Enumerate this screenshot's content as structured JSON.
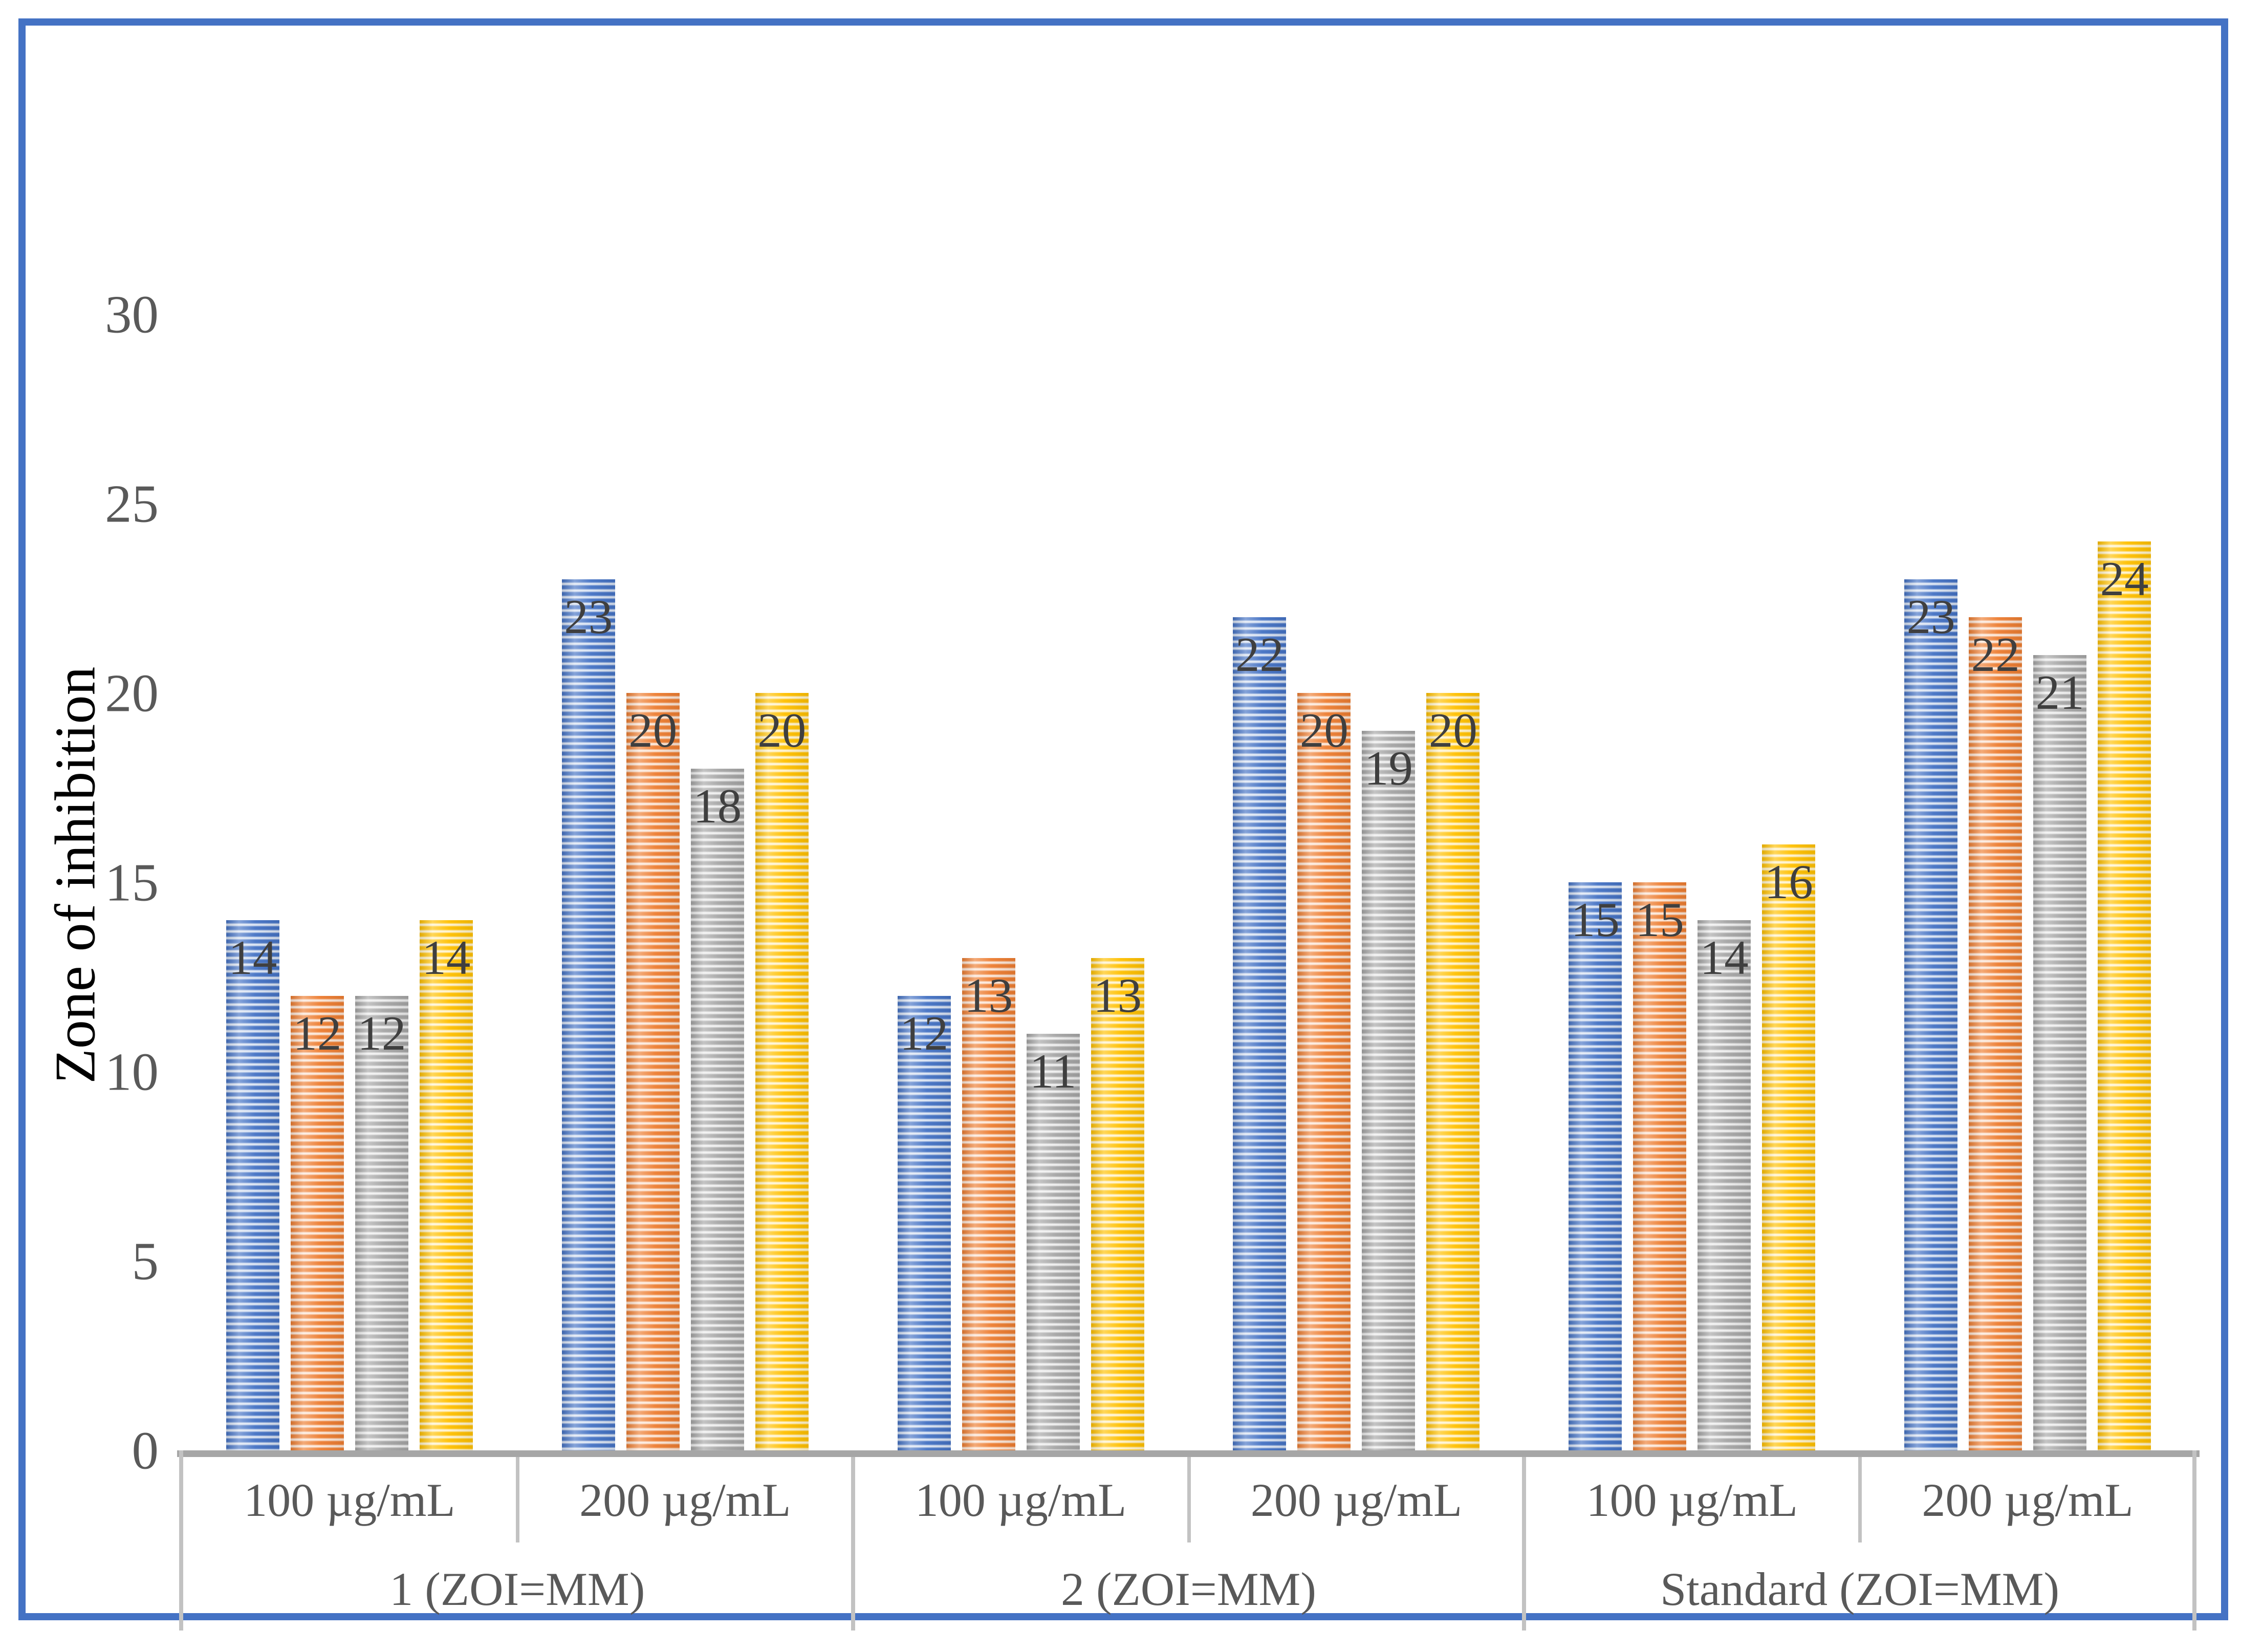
{
  "chart_data": {
    "type": "bar",
    "ylabel": "Zone of inhibition",
    "ylim": [
      0,
      30
    ],
    "yticks": [
      0,
      5,
      10,
      15,
      20,
      25,
      30
    ],
    "grid": false,
    "legend": "none",
    "group_labels": [
      "1 (ZOI=MM)",
      "2 (ZOI=MM)",
      "Standard (ZOI=MM)"
    ],
    "concentration_labels": [
      "100 µg/mL",
      "200 µg/mL"
    ],
    "series_colors": [
      "#4472C4",
      "#ED7D31",
      "#A5A5A5",
      "#FFC000"
    ],
    "series_names": [
      "bar-blue",
      "bar-orange",
      "bar-gray",
      "bar-yellow"
    ],
    "clusters": [
      {
        "group": "1 (ZOI=MM)",
        "concentration": "100 µg/mL",
        "values": [
          14,
          12,
          12,
          14
        ]
      },
      {
        "group": "1 (ZOI=MM)",
        "concentration": "200 µg/mL",
        "values": [
          23,
          20,
          18,
          20
        ]
      },
      {
        "group": "2 (ZOI=MM)",
        "concentration": "100 µg/mL",
        "values": [
          12,
          13,
          11,
          13
        ]
      },
      {
        "group": "2 (ZOI=MM)",
        "concentration": "200 µg/mL",
        "values": [
          22,
          20,
          19,
          20
        ]
      },
      {
        "group": "Standard (ZOI=MM)",
        "concentration": "100 µg/mL",
        "values": [
          15,
          15,
          14,
          16
        ]
      },
      {
        "group": "Standard (ZOI=MM)",
        "concentration": "200 µg/mL",
        "values": [
          23,
          22,
          21,
          24
        ]
      }
    ],
    "frame_color": "#4472C4"
  }
}
